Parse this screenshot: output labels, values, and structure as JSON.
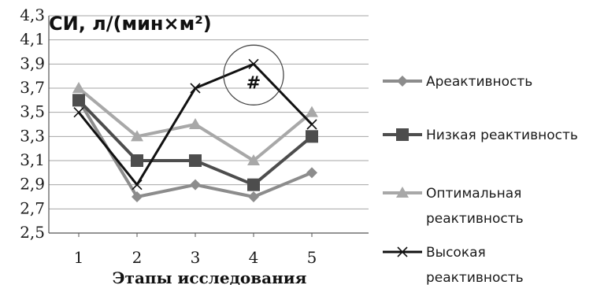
{
  "chart_data": {
    "type": "line",
    "ylabel": "СИ, л/(мин×м²)",
    "xlabel": "Этапы исследования",
    "x": [
      "1",
      "2",
      "3",
      "4",
      "5"
    ],
    "ylim": [
      2.5,
      4.3
    ],
    "yticks": [
      "2,5",
      "2,7",
      "2,9",
      "3,1",
      "3,3",
      "3,5",
      "3,7",
      "3,9",
      "4,1",
      "4,3"
    ],
    "grid": true,
    "legend_position": "right",
    "annotation": "#",
    "series": [
      {
        "name": "Ареактивность",
        "values": [
          3.6,
          2.8,
          2.9,
          2.8,
          3.0
        ],
        "color": "#8c8c8c",
        "marker": "diamond"
      },
      {
        "name": "Низкая реактивность",
        "values": [
          3.6,
          3.1,
          3.1,
          2.9,
          3.3
        ],
        "color": "#4d4d4d",
        "marker": "square"
      },
      {
        "name": "Оптимальная реактивность",
        "values": [
          3.7,
          3.3,
          3.4,
          3.1,
          3.5
        ],
        "color": "#a8a8a8",
        "marker": "triangle"
      },
      {
        "name": "Высокая реактивность",
        "values": [
          3.5,
          2.9,
          3.7,
          3.9,
          3.4
        ],
        "color": "#111111",
        "marker": "x"
      }
    ]
  }
}
